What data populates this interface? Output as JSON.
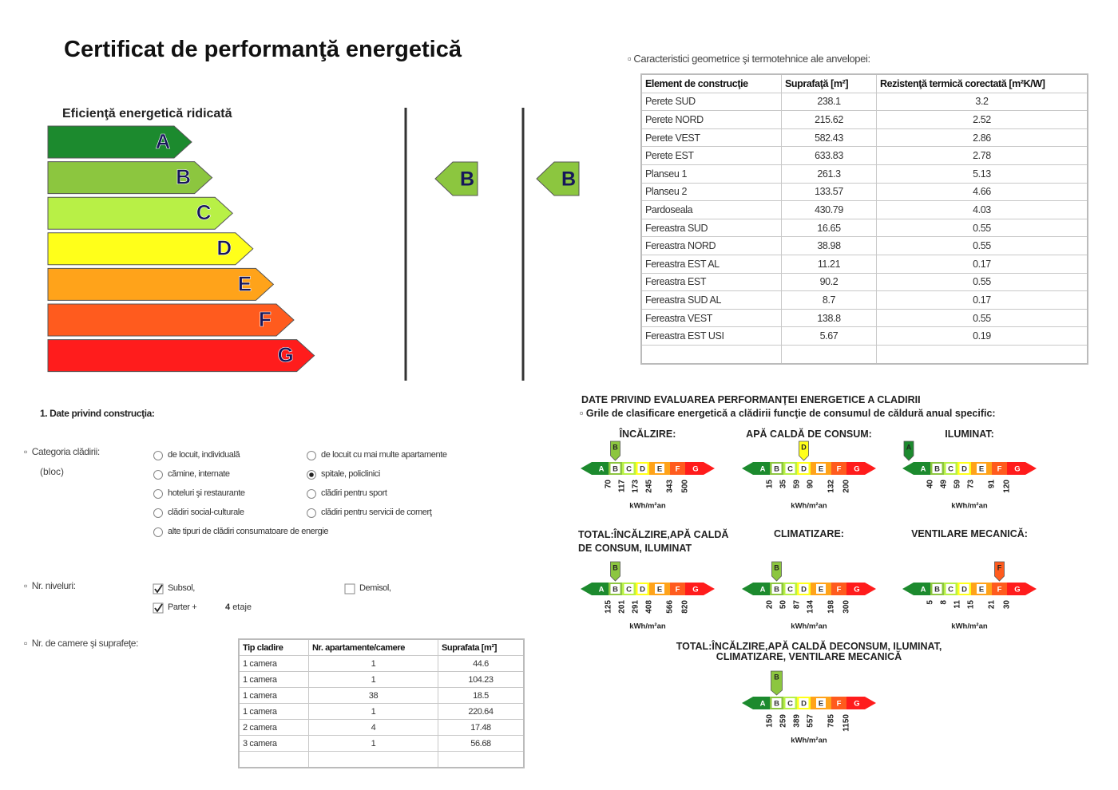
{
  "title": "Certificat de performanţă energetică",
  "scale": {
    "heading": "Eficienţă energetică ridicată",
    "classes": [
      "A",
      "B",
      "C",
      "D",
      "E",
      "F",
      "G"
    ],
    "colors": [
      "#1c8a2e",
      "#8cc63f",
      "#b8f046",
      "#ffff1a",
      "#ffa31a",
      "#ff5b1e",
      "#ff1c1c"
    ]
  },
  "indicators": [
    "B",
    "B"
  ],
  "envelope": {
    "heading": "Caracteristici geometrice şi termotehnice ale anvelopei:",
    "columns": [
      "Element de construcţie",
      "Suprafaţă [m²]",
      "Rezistenţă termică corectată [m²K/W]"
    ],
    "rows": [
      [
        "Perete SUD",
        238.1,
        3.2
      ],
      [
        "Perete NORD",
        215.62,
        2.52
      ],
      [
        "Perete VEST",
        582.43,
        2.86
      ],
      [
        "Perete EST",
        633.83,
        2.78
      ],
      [
        "Planseu 1",
        261.3,
        5.13
      ],
      [
        "Planseu 2",
        133.57,
        4.66
      ],
      [
        "Pardoseala",
        430.79,
        4.03
      ],
      [
        "Fereastra SUD",
        16.65,
        0.55
      ],
      [
        "Fereastra NORD",
        38.98,
        0.55
      ],
      [
        "Fereastra EST AL",
        11.21,
        0.17
      ],
      [
        "Fereastra EST",
        90.2,
        0.55
      ],
      [
        "Fereastra SUD AL",
        8.7,
        0.17
      ],
      [
        "Fereastra VEST",
        138.8,
        0.55
      ],
      [
        "Fereastra EST USI",
        5.67,
        0.19
      ]
    ]
  },
  "construction": {
    "heading": "1. Date privind construcţia:",
    "category": {
      "label": "Categoria clădirii:",
      "note": "(bloc)",
      "options": [
        {
          "label": "de locuit, individuală",
          "checked": false
        },
        {
          "label": "de locuit cu mai multe apartamente",
          "checked": false
        },
        {
          "label": "cămine, internate",
          "checked": false
        },
        {
          "label": "spitale, policlinici",
          "checked": true
        },
        {
          "label": "hoteluri şi restaurante",
          "checked": false
        },
        {
          "label": "clădiri pentru sport",
          "checked": false
        },
        {
          "label": "clădiri social-culturale",
          "checked": false
        },
        {
          "label": "clădiri pentru servicii de comerţ",
          "checked": false
        },
        {
          "label": "alte tipuri de clădiri consumatoare de energie",
          "checked": false
        }
      ]
    },
    "levels": {
      "label": "Nr. niveluri:",
      "options": [
        {
          "label": "Subsol,",
          "checked": true
        },
        {
          "label": "Demisol,",
          "checked": false
        },
        {
          "label": "Parter +",
          "checked": true
        }
      ],
      "floors": 4,
      "floors_unit": "etaje"
    },
    "rooms": {
      "label": "Nr. de camere şi suprafeţe:",
      "columns": [
        "Tip cladire",
        "Nr. apartamente/camere",
        "Suprafata [m²]"
      ],
      "rows": [
        [
          "1 camera",
          1,
          44.6
        ],
        [
          "1 camera",
          1,
          104.23
        ],
        [
          "1 camera",
          38,
          18.5
        ],
        [
          "1 camera",
          1,
          220.64
        ],
        [
          "2 camera",
          4,
          17.48
        ],
        [
          "3 camera",
          1,
          56.68
        ]
      ]
    }
  },
  "evaluation": {
    "title": "DATE PRIVIND EVALUAREA PERFORMANŢEI ENERGETICE A CLADIRII",
    "subtitle": "Grile de clasificare energetică a clădirii funcţie de consumul de căldură anual specific:",
    "unit": "kWh/m²an",
    "scales": [
      {
        "name": "ÎNCĂLZIRE:",
        "rating": "B",
        "ticks": [
          70,
          117,
          173,
          245,
          343,
          500
        ]
      },
      {
        "name": "APĂ CALDĂ DE CONSUM:",
        "rating": "D",
        "ticks": [
          15,
          35,
          59,
          90,
          132,
          200
        ]
      },
      {
        "name": "ILUMINAT:",
        "rating": "A",
        "ticks": [
          40,
          49,
          59,
          73,
          91,
          120
        ]
      },
      {
        "name": "TOTAL:ÎNCĂLZIRE,APĂ CALDĂ DE CONSUM, ILUMINAT",
        "rating": "B",
        "ticks": [
          125,
          201,
          291,
          408,
          566,
          820
        ]
      },
      {
        "name": "CLIMATIZARE:",
        "rating": "B",
        "ticks": [
          20,
          50,
          87,
          134,
          198,
          300
        ]
      },
      {
        "name": "VENTILARE MECANICĂ:",
        "rating": "F",
        "ticks": [
          5,
          8,
          11,
          15,
          21,
          30
        ]
      },
      {
        "name": "TOTAL:ÎNCĂLZIRE,APĂ CALDĂ DECONSUM, ILUMINAT, CLIMATIZARE, VENTILARE MECANICĂ",
        "rating": "B",
        "ticks": [
          150,
          259,
          389,
          557,
          785,
          1150
        ]
      }
    ]
  }
}
